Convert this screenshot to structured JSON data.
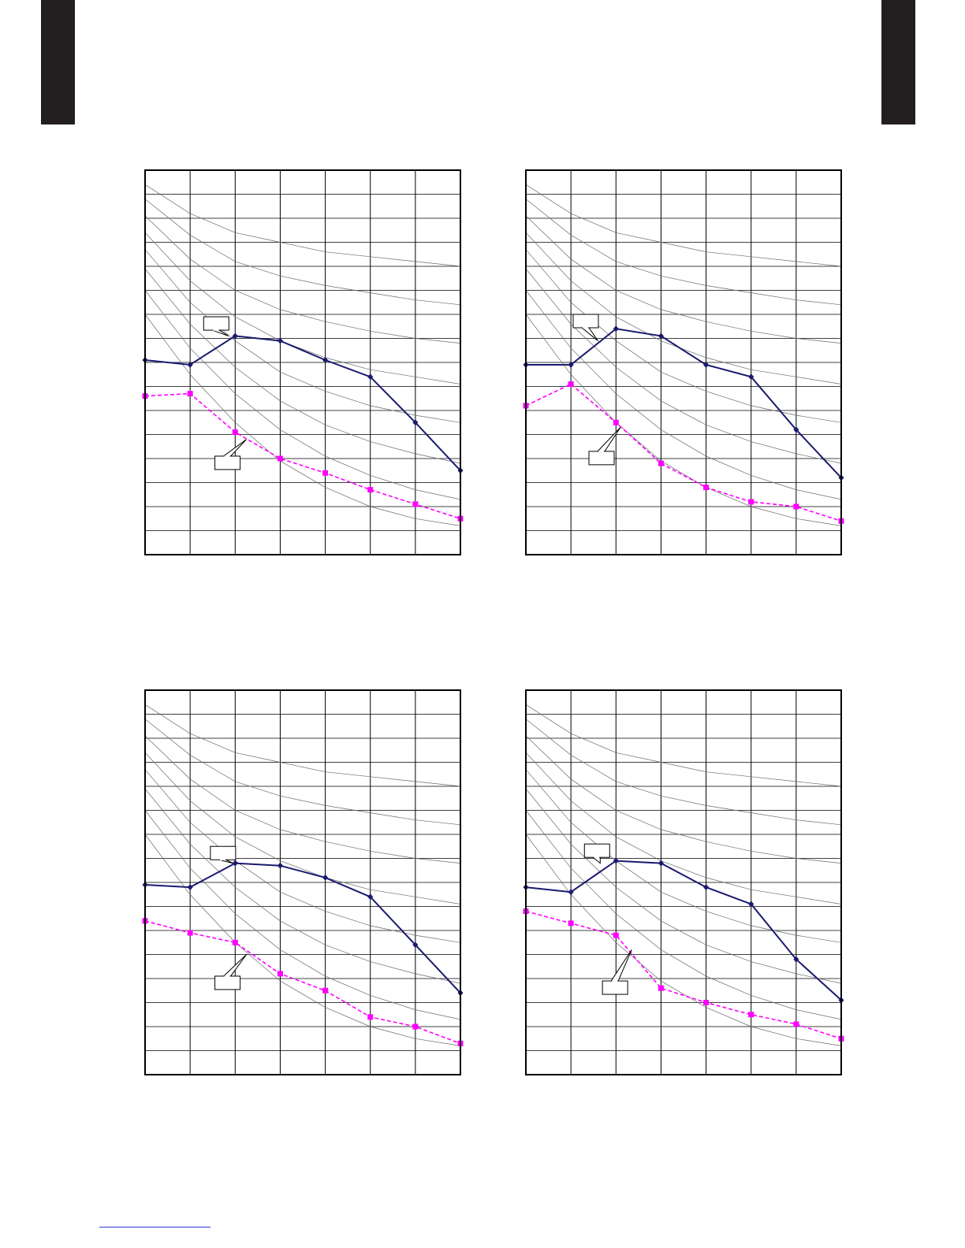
{
  "page": {
    "tab_color": "#231f20",
    "footer_rule_color": "#2a34c8"
  },
  "colors": {
    "series_a": "#1a1a6e",
    "series_b": "#ff00ff",
    "grid": "#000000",
    "curves": "#6b6b6b"
  },
  "chart_data": [
    {
      "type": "line",
      "title": "",
      "xlabel": "",
      "ylabel": "",
      "x": [
        0,
        1,
        2,
        3,
        4,
        5,
        6,
        7
      ],
      "xlim": [
        0,
        7
      ],
      "ylim": [
        0,
        16
      ],
      "grid": true,
      "legend": "none",
      "curve_family": [
        [
          15.4,
          14.2,
          13.4,
          13.0,
          12.6,
          12.4,
          12.2,
          12.0
        ],
        [
          14.8,
          13.3,
          12.2,
          11.6,
          11.2,
          10.9,
          10.6,
          10.4
        ],
        [
          14.1,
          12.3,
          11.0,
          10.2,
          9.7,
          9.3,
          9.0,
          8.8
        ],
        [
          13.4,
          11.4,
          9.9,
          8.9,
          8.2,
          7.7,
          7.4,
          7.1
        ],
        [
          12.7,
          10.5,
          8.9,
          7.6,
          6.8,
          6.2,
          5.8,
          5.5
        ],
        [
          11.9,
          9.6,
          7.8,
          6.4,
          5.4,
          4.7,
          4.2,
          3.8
        ],
        [
          11.0,
          8.6,
          6.7,
          5.2,
          4.1,
          3.3,
          2.7,
          2.3
        ],
        [
          10.0,
          7.5,
          5.5,
          3.9,
          2.8,
          2.0,
          1.5,
          1.2
        ]
      ],
      "series": [
        {
          "values": [
            8.1,
            7.9,
            9.1,
            8.9,
            8.1,
            7.4,
            5.5,
            3.5
          ],
          "style": "solid",
          "marker": "diamond"
        },
        {
          "values": [
            6.6,
            6.7,
            5.1,
            4.0,
            3.4,
            2.7,
            2.1,
            1.5
          ],
          "style": "dashed",
          "marker": "square"
        }
      ],
      "callouts": [
        {
          "series": 0,
          "x": 1.85,
          "y": 9.1,
          "box_x": 1.3,
          "box_y": 9.9
        },
        {
          "series": 1,
          "x": 2.25,
          "y": 4.8,
          "box_x": 1.55,
          "box_y": 4.1
        }
      ]
    },
    {
      "type": "line",
      "title": "",
      "xlabel": "",
      "ylabel": "",
      "x": [
        0,
        1,
        2,
        3,
        4,
        5,
        6,
        7
      ],
      "xlim": [
        0,
        7
      ],
      "ylim": [
        0,
        16
      ],
      "grid": true,
      "legend": "none",
      "curve_family": [
        [
          15.4,
          14.2,
          13.4,
          13.0,
          12.6,
          12.4,
          12.2,
          12.0
        ],
        [
          14.8,
          13.3,
          12.2,
          11.6,
          11.2,
          10.9,
          10.6,
          10.4
        ],
        [
          14.1,
          12.3,
          11.0,
          10.2,
          9.7,
          9.3,
          9.0,
          8.8
        ],
        [
          13.4,
          11.4,
          9.9,
          8.9,
          8.2,
          7.7,
          7.4,
          7.1
        ],
        [
          12.7,
          10.5,
          8.9,
          7.6,
          6.8,
          6.2,
          5.8,
          5.5
        ],
        [
          11.9,
          9.6,
          7.8,
          6.4,
          5.4,
          4.7,
          4.2,
          3.8
        ],
        [
          11.0,
          8.6,
          6.7,
          5.2,
          4.1,
          3.3,
          2.7,
          2.3
        ],
        [
          10.0,
          7.5,
          5.5,
          3.9,
          2.8,
          2.0,
          1.5,
          1.2
        ]
      ],
      "series": [
        {
          "values": [
            7.9,
            7.9,
            9.4,
            9.1,
            7.9,
            7.4,
            5.2,
            3.2
          ],
          "style": "solid",
          "marker": "diamond"
        },
        {
          "values": [
            6.2,
            7.1,
            5.5,
            3.8,
            2.8,
            2.2,
            2.0,
            1.4
          ],
          "style": "dashed",
          "marker": "square"
        }
      ],
      "callouts": [
        {
          "series": 0,
          "x": 1.6,
          "y": 8.9,
          "box_x": 1.05,
          "box_y": 10.0
        },
        {
          "series": 1,
          "x": 2.1,
          "y": 5.3,
          "box_x": 1.4,
          "box_y": 4.3
        }
      ]
    },
    {
      "type": "line",
      "title": "",
      "xlabel": "",
      "ylabel": "",
      "x": [
        0,
        1,
        2,
        3,
        4,
        5,
        6,
        7
      ],
      "xlim": [
        0,
        7
      ],
      "ylim": [
        0,
        16
      ],
      "grid": true,
      "legend": "none",
      "curve_family": [
        [
          15.4,
          14.2,
          13.4,
          13.0,
          12.6,
          12.4,
          12.2,
          12.0
        ],
        [
          14.8,
          13.3,
          12.2,
          11.6,
          11.2,
          10.9,
          10.6,
          10.4
        ],
        [
          14.1,
          12.3,
          11.0,
          10.2,
          9.7,
          9.3,
          9.0,
          8.8
        ],
        [
          13.4,
          11.4,
          9.9,
          8.9,
          8.2,
          7.7,
          7.4,
          7.1
        ],
        [
          12.7,
          10.5,
          8.9,
          7.6,
          6.8,
          6.2,
          5.8,
          5.5
        ],
        [
          11.9,
          9.6,
          7.8,
          6.4,
          5.4,
          4.7,
          4.2,
          3.8
        ],
        [
          11.0,
          8.6,
          6.7,
          5.2,
          4.1,
          3.3,
          2.7,
          2.3
        ],
        [
          10.0,
          7.5,
          5.5,
          3.9,
          2.8,
          2.0,
          1.5,
          1.2
        ]
      ],
      "series": [
        {
          "values": [
            7.9,
            7.8,
            8.8,
            8.7,
            8.2,
            7.4,
            5.4,
            3.4
          ],
          "style": "solid",
          "marker": "diamond"
        },
        {
          "values": [
            6.4,
            5.9,
            5.5,
            4.2,
            3.5,
            2.4,
            2.0,
            1.3
          ],
          "style": "dashed",
          "marker": "square"
        }
      ],
      "callouts": [
        {
          "series": 0,
          "x": 1.95,
          "y": 8.8,
          "box_x": 1.45,
          "box_y": 9.5
        },
        {
          "series": 1,
          "x": 2.25,
          "y": 5.0,
          "box_x": 1.55,
          "box_y": 4.1
        }
      ]
    },
    {
      "type": "line",
      "title": "",
      "xlabel": "",
      "ylabel": "",
      "x": [
        0,
        1,
        2,
        3,
        4,
        5,
        6,
        7
      ],
      "xlim": [
        0,
        7
      ],
      "ylim": [
        0,
        16
      ],
      "grid": true,
      "legend": "none",
      "curve_family": [
        [
          15.4,
          14.2,
          13.4,
          13.0,
          12.6,
          12.4,
          12.2,
          12.0
        ],
        [
          14.8,
          13.3,
          12.2,
          11.6,
          11.2,
          10.9,
          10.6,
          10.4
        ],
        [
          14.1,
          12.3,
          11.0,
          10.2,
          9.7,
          9.3,
          9.0,
          8.8
        ],
        [
          13.4,
          11.4,
          9.9,
          8.9,
          8.2,
          7.7,
          7.4,
          7.1
        ],
        [
          12.7,
          10.5,
          8.9,
          7.6,
          6.8,
          6.2,
          5.8,
          5.5
        ],
        [
          11.9,
          9.6,
          7.8,
          6.4,
          5.4,
          4.7,
          4.2,
          3.8
        ],
        [
          11.0,
          8.6,
          6.7,
          5.2,
          4.1,
          3.3,
          2.7,
          2.3
        ],
        [
          10.0,
          7.5,
          5.5,
          3.9,
          2.8,
          2.0,
          1.5,
          1.2
        ]
      ],
      "series": [
        {
          "values": [
            7.8,
            7.6,
            8.9,
            8.8,
            7.8,
            7.1,
            4.8,
            3.1
          ],
          "style": "solid",
          "marker": "diamond"
        },
        {
          "values": [
            6.8,
            6.3,
            5.8,
            3.6,
            3.0,
            2.5,
            2.1,
            1.5
          ],
          "style": "dashed",
          "marker": "square"
        }
      ],
      "callouts": [
        {
          "series": 0,
          "x": 1.65,
          "y": 8.8,
          "box_x": 1.3,
          "box_y": 9.6
        },
        {
          "series": 1,
          "x": 2.35,
          "y": 5.2,
          "box_x": 1.7,
          "box_y": 3.9
        }
      ]
    }
  ]
}
